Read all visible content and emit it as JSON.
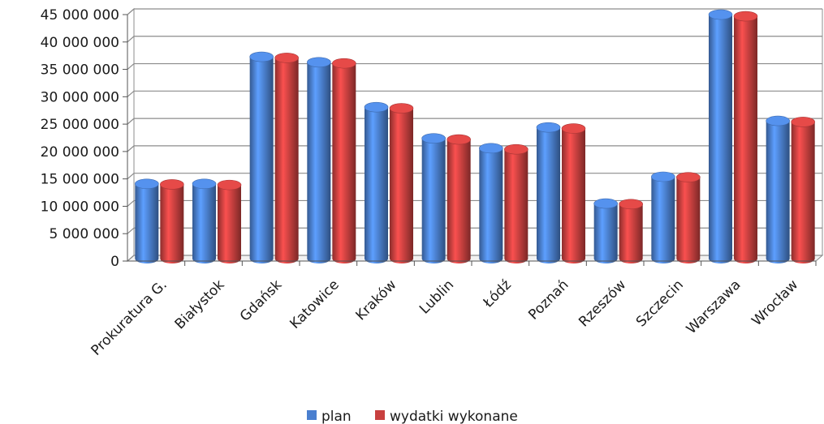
{
  "chart_data": {
    "type": "bar",
    "categories": [
      "Prokuratura G.",
      "Białystok",
      "Gdańsk",
      "Katowice",
      "Kraków",
      "Lublin",
      "Łódź",
      "Poznań",
      "Rzeszów",
      "Szczecin",
      "Warszawa",
      "Wrocław"
    ],
    "series": [
      {
        "name": "plan",
        "color": "#4a7fcf",
        "values": [
          13800000,
          13800000,
          37000000,
          36000000,
          27800000,
          22100000,
          20300000,
          24100000,
          10200000,
          15100000,
          44700000,
          25300000
        ]
      },
      {
        "name": "wydatki wykonane",
        "color": "#c8403f",
        "values": [
          13700000,
          13600000,
          36800000,
          35800000,
          27600000,
          21900000,
          20100000,
          23900000,
          10100000,
          15000000,
          44400000,
          25100000
        ]
      }
    ],
    "ylim": [
      0,
      45000000
    ],
    "yticks": [
      "0",
      "5 000 000",
      "10 000 000",
      "15 000 000",
      "20 000 000",
      "25 000 000",
      "30 000 000",
      "35 000 000",
      "40 000 000",
      "45 000 000"
    ],
    "ytick_values": [
      0,
      5000000,
      10000000,
      15000000,
      20000000,
      25000000,
      30000000,
      35000000,
      40000000,
      45000000
    ],
    "grid": true,
    "style": "3d-cylinder",
    "legend_position": "bottom"
  }
}
